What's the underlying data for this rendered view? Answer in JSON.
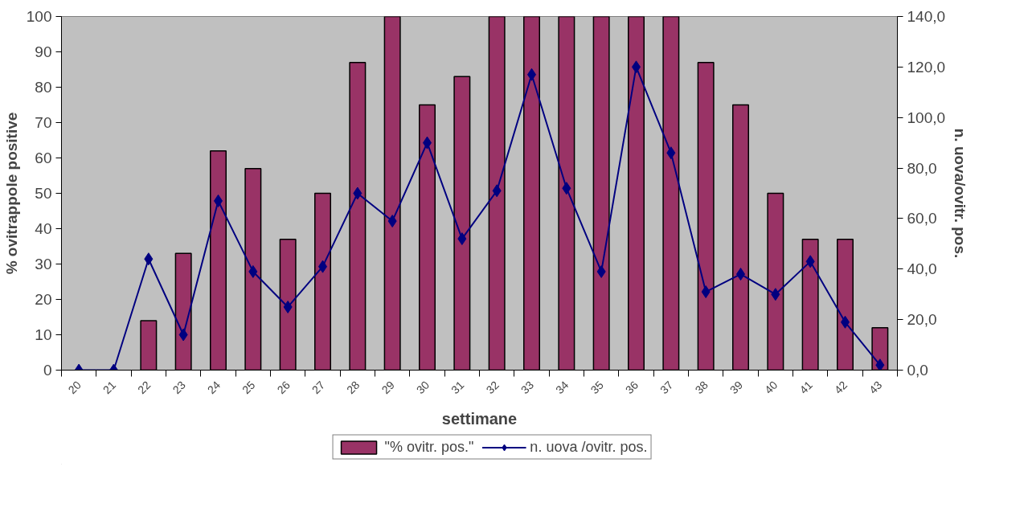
{
  "chart_data": {
    "type": "bar",
    "xlabel": "settimane",
    "ylabel": "% ovitrappole positive",
    "y2label": "n. uova/ovitr. pos.",
    "categories": [
      "20",
      "21",
      "22",
      "23",
      "24",
      "25",
      "26",
      "27",
      "28",
      "29",
      "30",
      "31",
      "32",
      "33",
      "34",
      "35",
      "36",
      "37",
      "38",
      "39",
      "40",
      "41",
      "42",
      "43"
    ],
    "series": [
      {
        "name": "\"% ovitr. pos.\"",
        "color": "#993366",
        "values": [
          0,
          0,
          14,
          33,
          62,
          57,
          37,
          50,
          87,
          100,
          75,
          83,
          100,
          100,
          100,
          100,
          100,
          100,
          87,
          75,
          50,
          37,
          37,
          12
        ]
      },
      {
        "name": "n. uova /ovitr. pos.",
        "type": "line",
        "axis": "y2",
        "color": "#000080",
        "marker": "diamond",
        "values": [
          0,
          0,
          44,
          14,
          67,
          39,
          25,
          41,
          70,
          59,
          90,
          52,
          71,
          117,
          72,
          39,
          120,
          86,
          31,
          38,
          30,
          43,
          19,
          2
        ]
      }
    ],
    "ylim": [
      0,
      100
    ],
    "yticks": [
      0,
      10,
      20,
      30,
      40,
      50,
      60,
      70,
      80,
      90,
      100
    ],
    "y2lim": [
      0,
      140
    ],
    "y2ticks": [
      {
        "value": 0,
        "label": "0,0"
      },
      {
        "value": 20,
        "label": "20,0"
      },
      {
        "value": 40,
        "label": "40,0"
      },
      {
        "value": 60,
        "label": "60,0"
      },
      {
        "value": 80,
        "label": "80,0"
      },
      {
        "value": 100,
        "label": "100,0"
      },
      {
        "value": 120,
        "label": "120,0"
      },
      {
        "value": 140,
        "label": "140,0"
      }
    ],
    "grid": false,
    "legend": "bottom"
  }
}
